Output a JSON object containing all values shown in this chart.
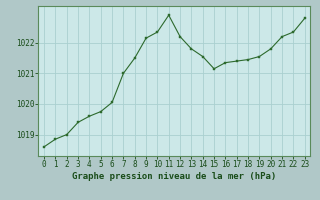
{
  "hours": [
    0,
    1,
    2,
    3,
    4,
    5,
    6,
    7,
    8,
    9,
    10,
    11,
    12,
    13,
    14,
    15,
    16,
    17,
    18,
    19,
    20,
    21,
    22,
    23
  ],
  "pressure": [
    1018.6,
    1018.85,
    1019.0,
    1019.4,
    1019.6,
    1019.75,
    1020.05,
    1021.0,
    1021.5,
    1022.15,
    1022.35,
    1022.9,
    1022.2,
    1021.8,
    1021.55,
    1021.15,
    1021.35,
    1021.4,
    1021.45,
    1021.55,
    1021.8,
    1022.2,
    1022.35,
    1022.8
  ],
  "line_color": "#2d6a2d",
  "marker_color": "#2d6a2d",
  "bg_color": "#cce8e8",
  "plot_bg_color": "#cce8e8",
  "outer_bg": "#b0c8c8",
  "grid_color": "#aad0d0",
  "axis_label_color": "#1a4d1a",
  "tick_color": "#1a4d1a",
  "ylabel_ticks": [
    1019,
    1020,
    1021,
    1022
  ],
  "xlabel": "Graphe pression niveau de la mer (hPa)",
  "xlim": [
    -0.5,
    23.5
  ],
  "ylim": [
    1018.3,
    1023.2
  ],
  "xlabel_fontsize": 6.5,
  "tick_fontsize": 5.5,
  "border_color": "#7aaa7a",
  "spine_color": "#5a8a5a"
}
